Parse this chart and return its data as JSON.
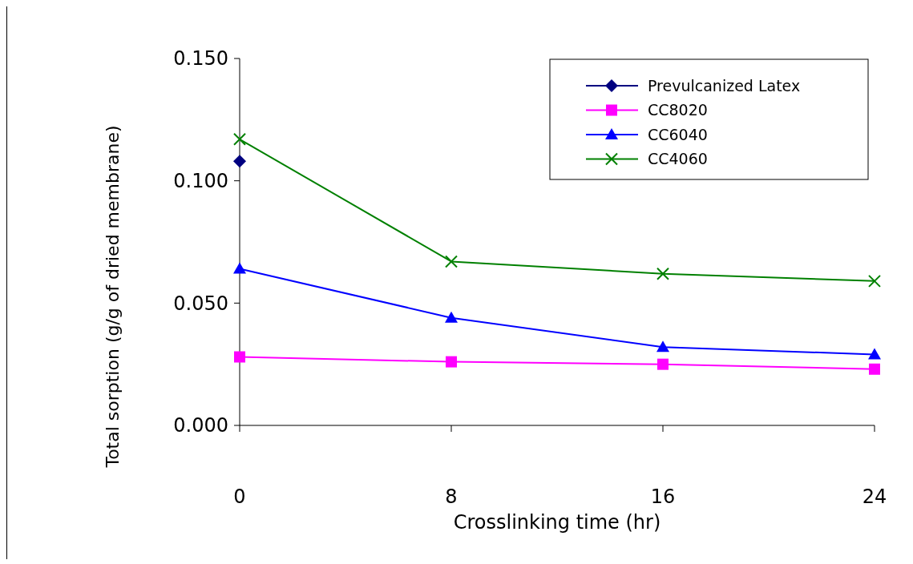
{
  "chart_data": {
    "type": "line",
    "xlabel": "Crosslinking time (hr)",
    "ylabel": "Total sorption (g/g of dried membrane)",
    "x": [
      0,
      8,
      16,
      24
    ],
    "xlim": [
      0,
      24
    ],
    "xticks": [
      0,
      8,
      16,
      24
    ],
    "ylim": [
      0,
      0.15
    ],
    "yticks": [
      {
        "value": 0,
        "label": "0.000"
      },
      {
        "value": 0.05,
        "label": "0.050"
      },
      {
        "value": 0.1,
        "label": "0.100"
      },
      {
        "value": 0.15,
        "label": "0.150"
      }
    ],
    "grid": false,
    "legend": "top right",
    "series": [
      {
        "name": "Prevulcanized Latex",
        "color": "#000080",
        "marker": "diamond",
        "values": [
          0.108,
          null,
          null,
          null
        ]
      },
      {
        "name": "CC8020",
        "color": "#ff00ff",
        "marker": "square",
        "values": [
          0.028,
          0.026,
          0.025,
          0.023
        ]
      },
      {
        "name": "CC6040",
        "color": "#0000ff",
        "marker": "triangle",
        "values": [
          0.064,
          0.044,
          0.032,
          0.029
        ]
      },
      {
        "name": "CC4060",
        "color": "#008000",
        "marker": "cross",
        "values": [
          0.117,
          0.067,
          0.062,
          0.059
        ]
      }
    ]
  }
}
